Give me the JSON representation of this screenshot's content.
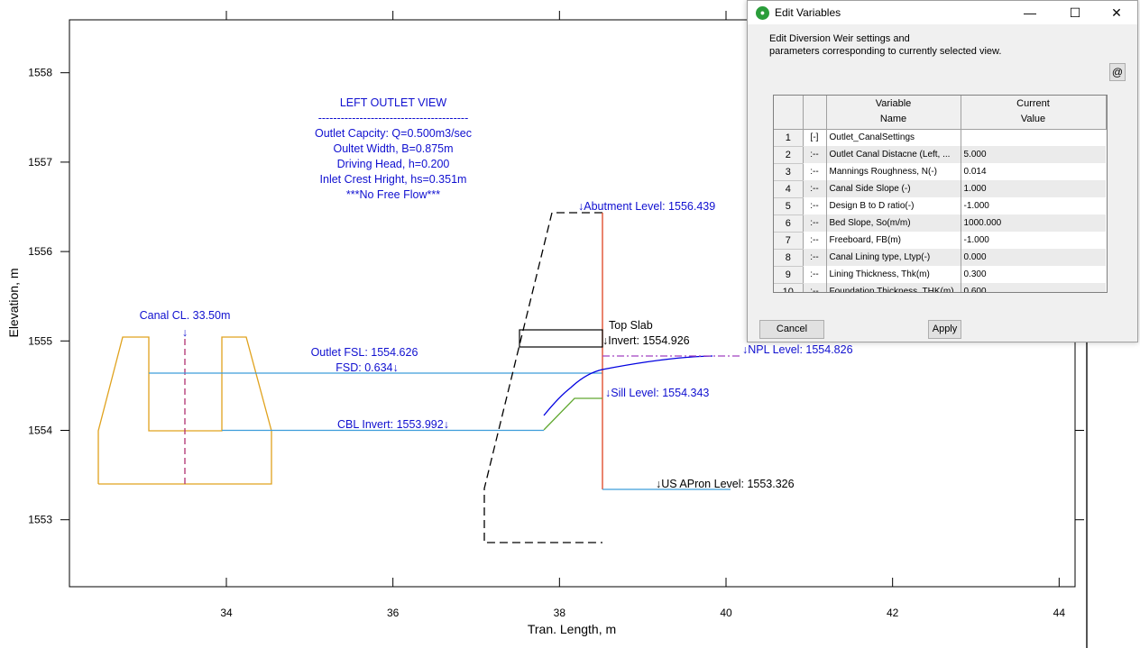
{
  "plot": {
    "xlabel": "Tran. Length, m",
    "ylabel": "Elevation, m",
    "x_ticks": [
      "34",
      "36",
      "38",
      "40",
      "42",
      "44"
    ],
    "y_ticks": [
      "1553",
      "1554",
      "1555",
      "1556",
      "1557",
      "1558"
    ],
    "info_lines": [
      "LEFT OUTLET VIEW",
      "----------------------------------------",
      "Outlet Capcity: Q=0.500m3/sec",
      "Oultet Width, B=0.875m",
      "Driving Head, h=0.200",
      "Inlet Crest Hright, hs=0.351m",
      "***No Free Flow***"
    ],
    "labels": {
      "canal_cl": "Canal CL. 33.50m",
      "canal_cl_arrow": "↓",
      "outlet_fsl": "Outlet FSL: 1554.626",
      "fsd": "FSD: 0.634↓",
      "cbl_invert": "CBL Invert: 1553.992↓",
      "abutment_level": "↓Abutment Level: 1556.439",
      "top_slab": "Top Slab",
      "invert": "↓Invert: 1554.926",
      "npl_level": "↓NPL Level: 1554.826",
      "sill_level": "↓Sill Level: 1554.343",
      "us_apron_level": "↓US APron Level: 1553.326"
    },
    "colors": {
      "canal_section": "#e0a21d",
      "water": "#3d9ddb",
      "centerline": "#b03070",
      "npl_line": "#a040c0",
      "abutment_face": "#e05030",
      "sill": "#60a830",
      "flow_curve": "#0000e0",
      "text_blue": "#1010d0"
    }
  },
  "dialog": {
    "title": "Edit Variables",
    "description_lines": [
      "Edit Diversion Weir settings and",
      "parameters corresponding to currently selected view."
    ],
    "at_button": "@",
    "header": {
      "variable_name": [
        "Variable",
        "Name"
      ],
      "current_value": [
        "Current",
        "Value"
      ]
    },
    "rows": [
      {
        "num": "1",
        "expander": "[-]",
        "name": "Outlet_CanalSettings",
        "value": ""
      },
      {
        "num": "2",
        "expander": ":--",
        "name": "Outlet Canal Distacne (Left, ...",
        "value": "5.000"
      },
      {
        "num": "3",
        "expander": ":--",
        "name": "Mannings Roughness, N(-)",
        "value": "0.014"
      },
      {
        "num": "4",
        "expander": ":--",
        "name": "Canal Side Slope (-)",
        "value": "1.000"
      },
      {
        "num": "5",
        "expander": ":--",
        "name": "Design B to D ratio(-)",
        "value": "-1.000"
      },
      {
        "num": "6",
        "expander": ":--",
        "name": "Bed Slope, So(m/m)",
        "value": "1000.000"
      },
      {
        "num": "7",
        "expander": ":--",
        "name": "Freeboard, FB(m)",
        "value": "-1.000"
      },
      {
        "num": "8",
        "expander": ":--",
        "name": "Canal Lining type, Ltyp(-)",
        "value": "0.000"
      },
      {
        "num": "9",
        "expander": ":--",
        "name": "Lining Thickness, Thk(m)",
        "value": "0.300"
      },
      {
        "num": "10",
        "expander": ":--",
        "name": "Foundation Thickness, THK(m)",
        "value": "0.600"
      }
    ],
    "cancel_label": "Cancel",
    "apply_label": "Apply",
    "minimize_icon": "—",
    "maximize_icon": "☐",
    "close_icon": "✕"
  }
}
